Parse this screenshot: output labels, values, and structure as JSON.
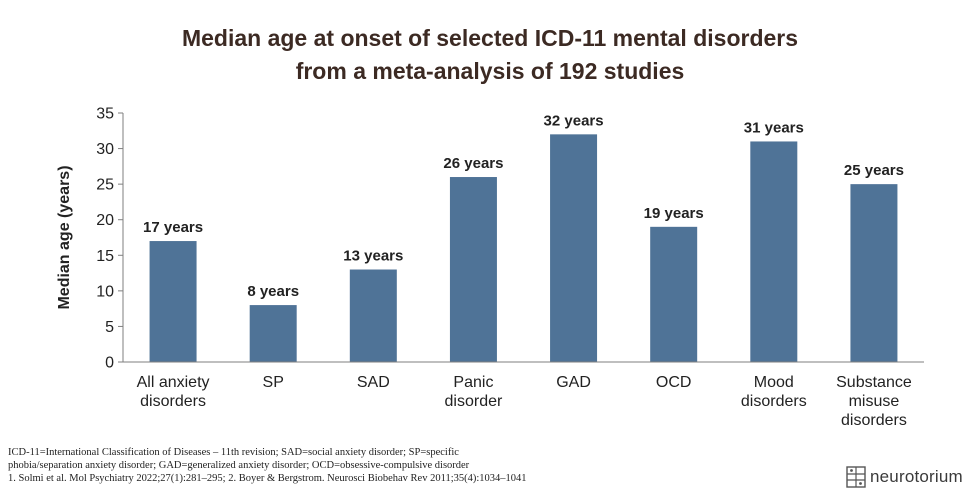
{
  "title_line1": "Median age at onset of selected ICD-11 mental disorders",
  "title_line2": "from a meta-analysis of 192 studies",
  "chart_data": {
    "type": "bar",
    "title": "Median age at onset of selected ICD-11 mental disorders from a meta-analysis of 192 studies",
    "categories": [
      [
        "All anxiety",
        "disorders"
      ],
      [
        "SP"
      ],
      [
        "SAD"
      ],
      [
        "Panic",
        "disorder"
      ],
      [
        "GAD"
      ],
      [
        "OCD"
      ],
      [
        "Mood",
        "disorders"
      ],
      [
        "Substance",
        "misuse",
        "disorders"
      ]
    ],
    "values": [
      17,
      8,
      13,
      26,
      32,
      19,
      31,
      25
    ],
    "data_labels": [
      "17 years",
      "8 years",
      "13 years",
      "26 years",
      "32 years",
      "19 years",
      "31 years",
      "25 years"
    ],
    "ylabel": "Median age (years)",
    "xlabel": "",
    "ylim": [
      0,
      35
    ],
    "yticks": [
      0,
      5,
      10,
      15,
      20,
      25,
      30,
      35
    ],
    "grid": false,
    "legend": "none",
    "bar_color": "#4f7397"
  },
  "footnotes": [
    "ICD-11=International Classification of Diseases – 11th revision; SAD=social anxiety disorder; SP=specific",
    "phobia/separation anxiety disorder; GAD=generalized anxiety disorder; OCD=obsessive-compulsive disorder",
    "1. Solmi et al. Mol Psychiatry 2022;27(1):281–295; 2. Boyer & Bergstrom. Neurosci Biobehav Rev 2011;35(4):1034–1041"
  ],
  "brand": {
    "name": "neurotorium",
    "icon": "neurotorium-logo-icon"
  }
}
